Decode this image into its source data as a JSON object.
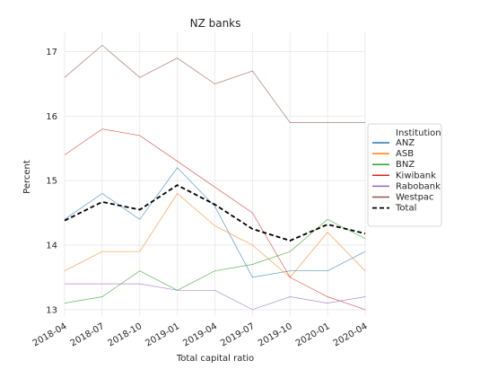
{
  "chart_data": {
    "type": "line",
    "title": "NZ banks",
    "xlabel": "Total capital ratio",
    "ylabel": "Percent",
    "x": [
      "2018-04",
      "2018-07",
      "2018-10",
      "2019-01",
      "2019-04",
      "2019-07",
      "2019-10",
      "2020-01",
      "2020-04"
    ],
    "ylim": [
      12.9,
      17.3
    ],
    "yticks": [
      13,
      14,
      15,
      16,
      17
    ],
    "grid": true,
    "legend": {
      "title": "Institution",
      "placement": "right"
    },
    "series": [
      {
        "name": "ANZ",
        "color": "#1f77b4",
        "values": [
          14.4,
          14.8,
          14.4,
          15.2,
          14.6,
          13.5,
          13.6,
          13.6,
          13.9
        ]
      },
      {
        "name": "ASB",
        "color": "#ff7f0e",
        "values": [
          13.6,
          13.9,
          13.9,
          14.8,
          14.3,
          14.0,
          13.5,
          14.2,
          13.6
        ]
      },
      {
        "name": "BNZ",
        "color": "#2ca02c",
        "values": [
          13.1,
          13.2,
          13.6,
          13.3,
          13.6,
          13.7,
          13.9,
          14.4,
          14.1
        ]
      },
      {
        "name": "Kiwibank",
        "color": "#d62728",
        "values": [
          15.4,
          15.8,
          15.7,
          15.3,
          14.9,
          14.5,
          13.5,
          13.2,
          13.0
        ]
      },
      {
        "name": "Rabobank",
        "color": "#9467bd",
        "values": [
          13.4,
          13.4,
          13.4,
          13.3,
          13.3,
          13.0,
          13.2,
          13.1,
          13.2
        ]
      },
      {
        "name": "Westpac",
        "color": "#8c564b",
        "values": [
          16.6,
          17.1,
          16.6,
          16.9,
          16.5,
          16.7,
          15.9,
          15.9,
          15.9
        ]
      },
      {
        "name": "Total",
        "color": "#000000",
        "dashed": true,
        "values": [
          14.38,
          14.67,
          14.55,
          14.93,
          14.63,
          14.25,
          14.07,
          14.32,
          14.18
        ]
      }
    ]
  }
}
